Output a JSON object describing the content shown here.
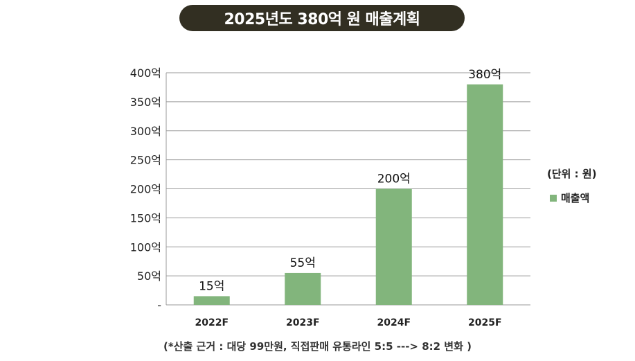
{
  "chart_data": {
    "type": "bar",
    "title": "2025년도 380억 원 매출계획",
    "categories": [
      "2022F",
      "2023F",
      "2024F",
      "2025F"
    ],
    "series": [
      {
        "name": "매출액",
        "values": [
          15,
          55,
          200,
          380
        ],
        "color": "#82b57c"
      }
    ],
    "data_labels": [
      "15억",
      "55억",
      "200억",
      "380억"
    ],
    "y_ticks": [
      0,
      50,
      100,
      150,
      200,
      250,
      300,
      350,
      400
    ],
    "y_tick_labels": [
      "-",
      "50억",
      "100억",
      "150억",
      "200억",
      "250억",
      "300억",
      "350억",
      "400억"
    ],
    "ylim": [
      0,
      400
    ],
    "grid": true,
    "unit_label": "(단위 : 원)",
    "legend_position": "right",
    "xlabel": "",
    "ylabel": ""
  },
  "note": "(*산출 근거 : 대당 99만원, 직접판매 유통라인 5:5 ---> 8:2 변화 )"
}
